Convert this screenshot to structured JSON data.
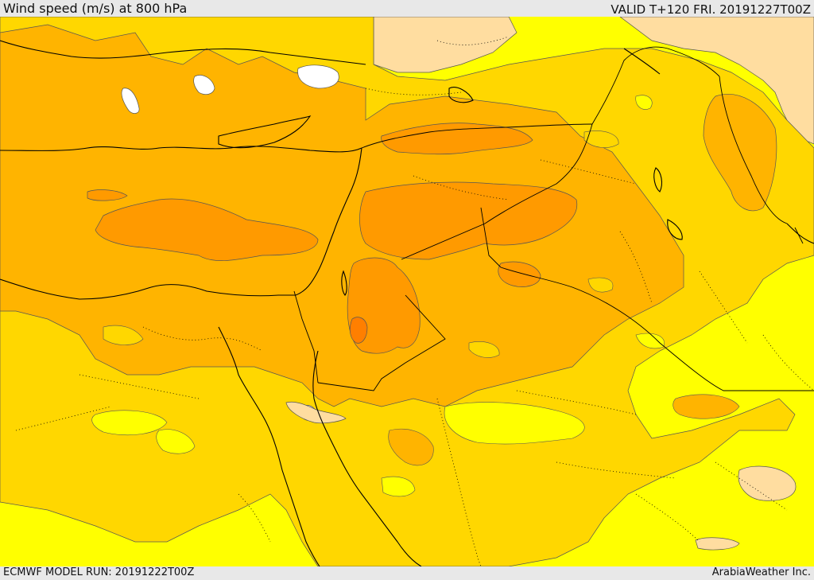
{
  "header": {
    "title": "Wind speed (m/s) at 800 hPa",
    "valid_time": "VALID T+120 FRI. 20191227T00Z"
  },
  "footer": {
    "model_run": "ECMWF MODEL RUN: 20191222T00Z",
    "credit": "ArabiaWeather Inc."
  },
  "map": {
    "variable": "wind speed",
    "units": "m/s",
    "level": "800 hPa",
    "colors": {
      "band_white": "#ffffff",
      "band_peach": "#ffdda0",
      "band_yellow": "#ffff00",
      "band_gold": "#ffd700",
      "band_amber": "#ffb400",
      "band_orange": "#ff9a00",
      "band_dark_orange": "#ff7f00",
      "contour_line": "#555555",
      "coastline": "#000000",
      "border": "#000000"
    }
  }
}
